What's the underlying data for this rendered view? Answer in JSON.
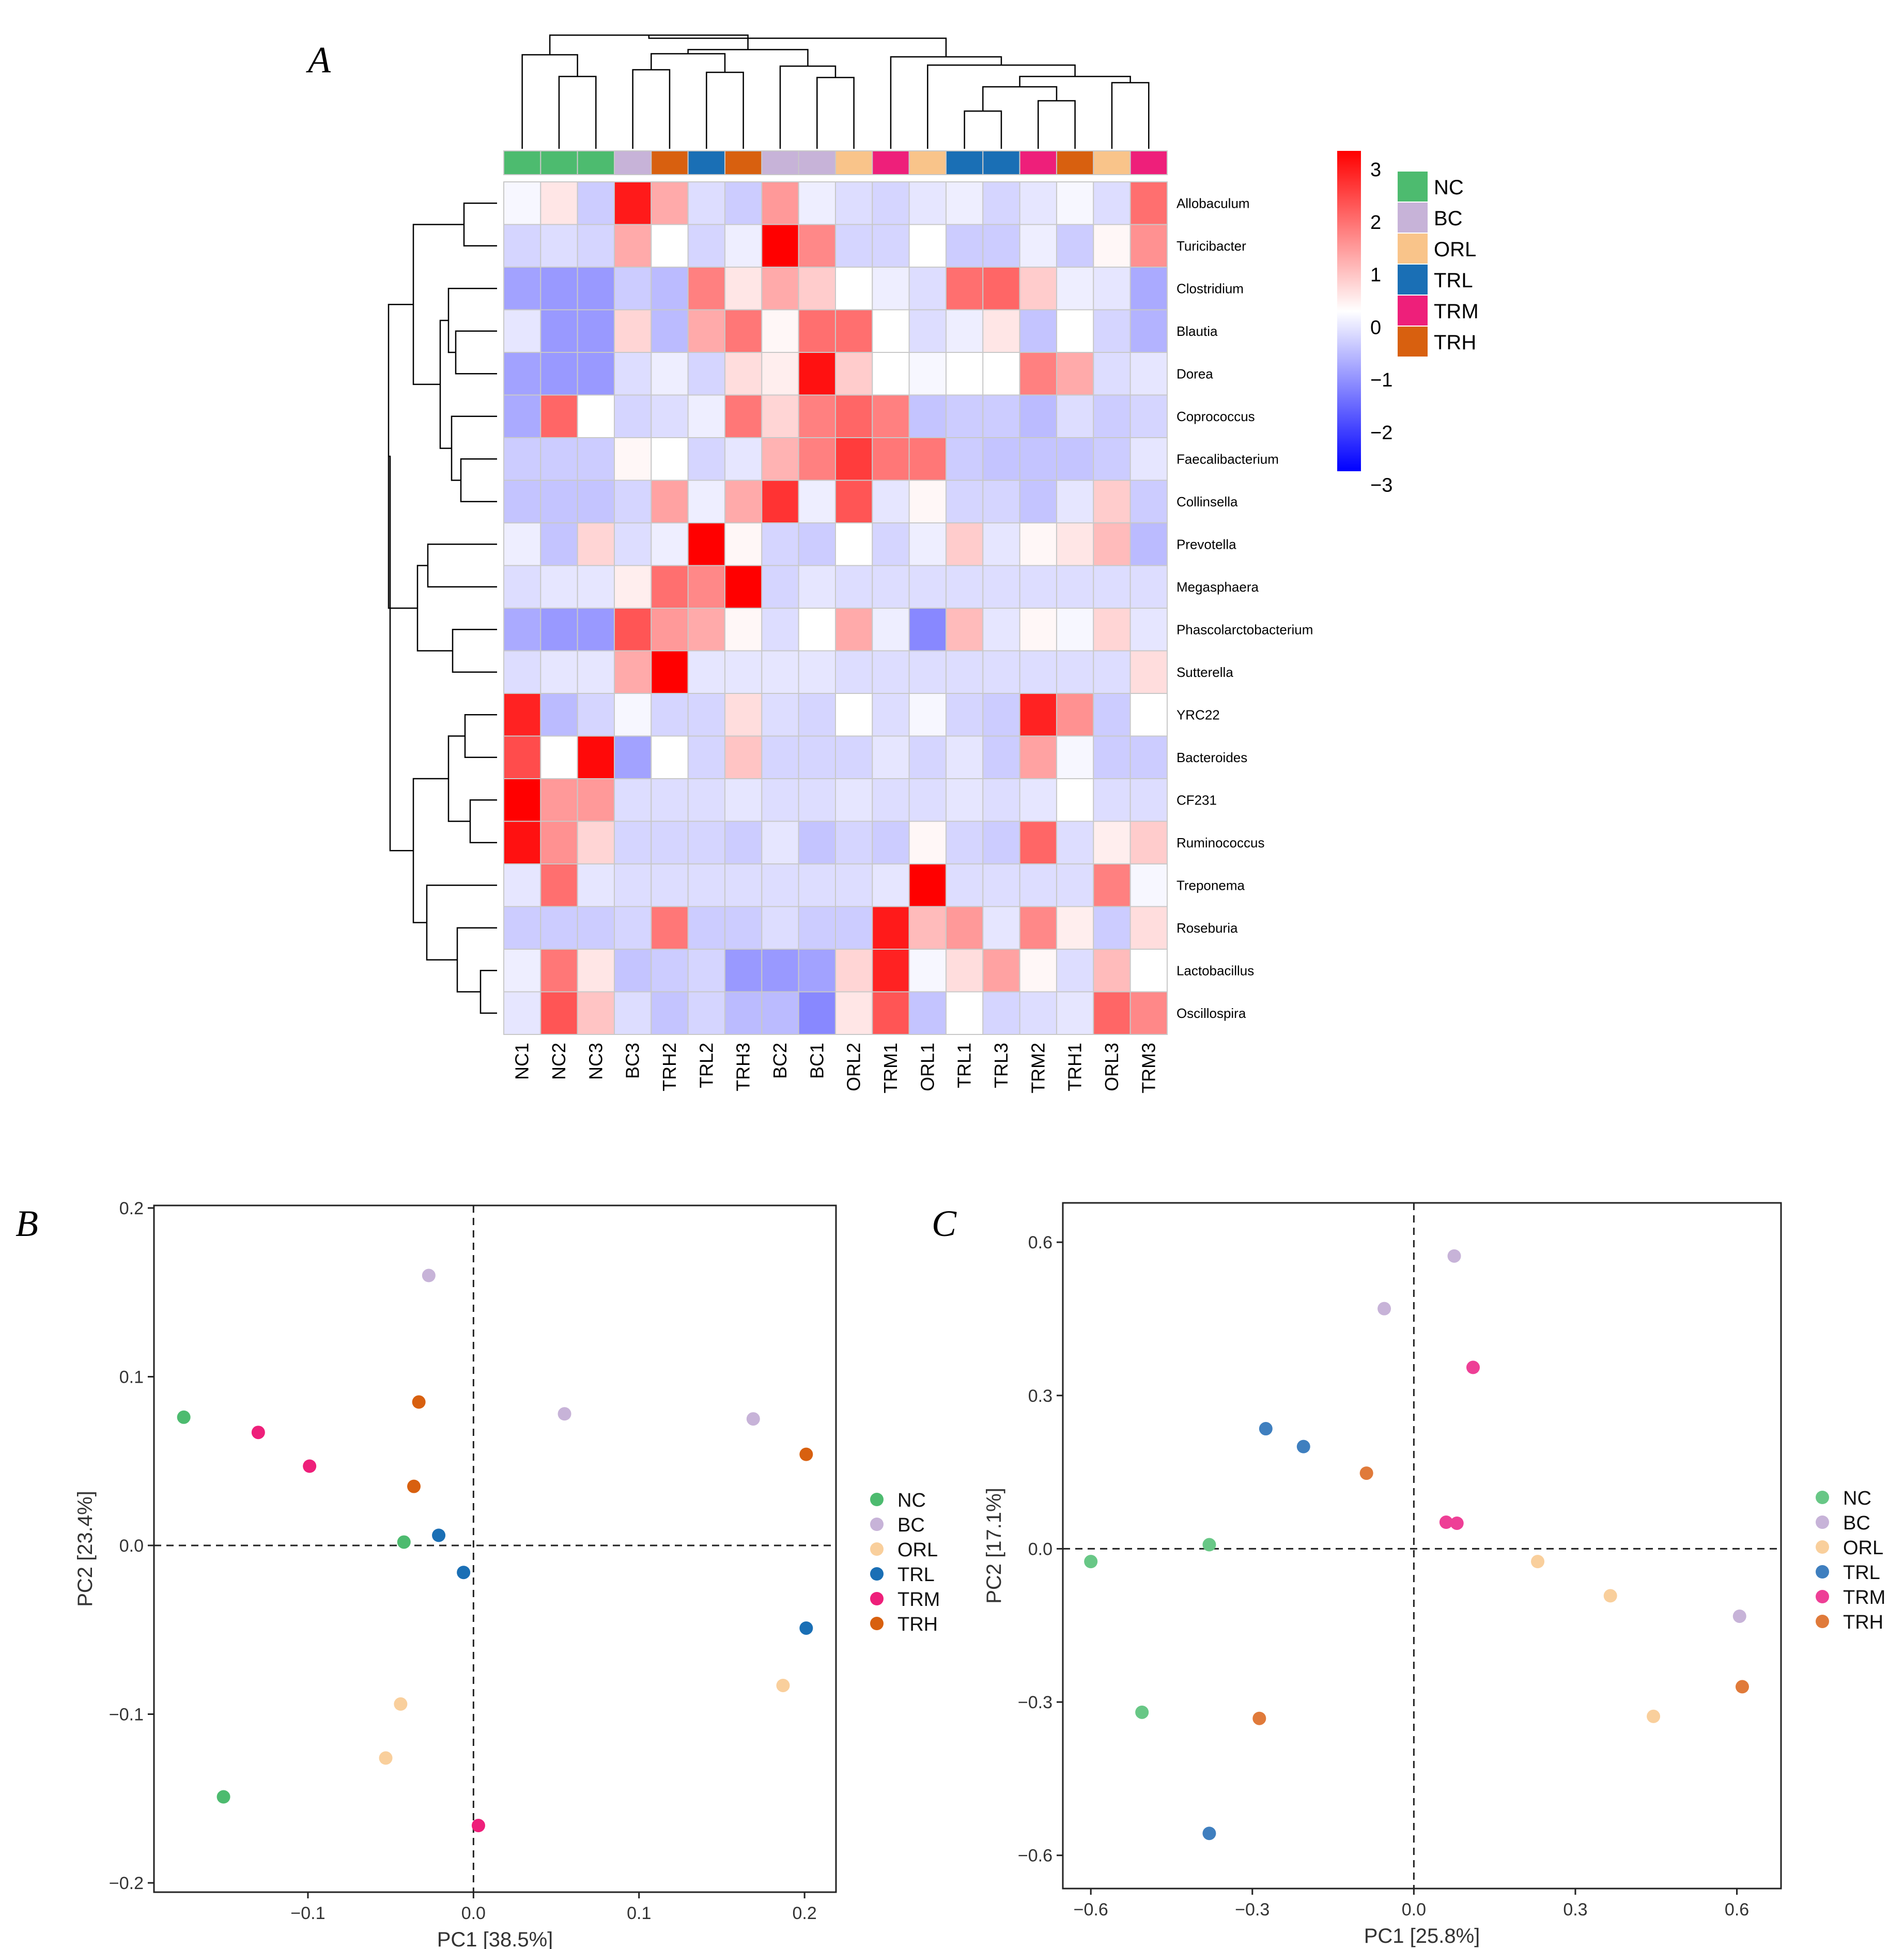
{
  "colors": {
    "NC": "#4dbb6f",
    "BC": "#c7b3d8",
    "ORL": "#f9c48a",
    "TRL": "#1a6fb5",
    "TRM": "#ee1f7a",
    "TRH": "#d8600f",
    "ORL_pca": "#f9cf9c",
    "NC_pcaC": "#68c786",
    "TRL_pcaC": "#3f7fbf",
    "TRH_pcaC": "#e07a3a",
    "TRM_pcaC": "#ee3f96"
  },
  "chart_data": [
    {
      "panel": "A",
      "type": "heatmap",
      "columns": [
        "NC1",
        "NC2",
        "NC3",
        "BC3",
        "TRH2",
        "TRL2",
        "TRH3",
        "BC2",
        "BC1",
        "ORL2",
        "TRM1",
        "ORL1",
        "TRL1",
        "TRL3",
        "TRM2",
        "TRH1",
        "ORL3",
        "TRM3"
      ],
      "column_groups": [
        "NC",
        "NC",
        "NC",
        "BC",
        "TRH",
        "TRL",
        "TRH",
        "BC",
        "BC",
        "ORL",
        "TRM",
        "ORL",
        "TRL",
        "TRL",
        "TRM",
        "TRH",
        "ORL",
        "TRM"
      ],
      "rows": [
        "Allobaculum",
        "Turicibacter",
        "Clostridium",
        "Blautia",
        "Dorea",
        "Coprococcus",
        "Faecalibacterium",
        "Collinsella",
        "Prevotella",
        "Megasphaera",
        "Phascolarctobacterium",
        "Sutterella",
        "YRC22",
        "Bacteroides",
        "CF231",
        "Ruminococcus",
        "Treponema",
        "Roseburia",
        "Lactobacillus",
        "Oscillospira"
      ],
      "values": [
        [
          -0.1,
          0.3,
          -0.6,
          2.7,
          1.0,
          -0.4,
          -0.6,
          1.2,
          -0.2,
          -0.4,
          -0.5,
          -0.3,
          -0.2,
          -0.5,
          -0.3,
          -0.1,
          -0.4,
          1.7
        ],
        [
          -0.5,
          -0.4,
          -0.5,
          1.0,
          0.0,
          -0.5,
          -0.2,
          3.0,
          1.4,
          -0.5,
          -0.5,
          0.0,
          -0.6,
          -0.6,
          -0.2,
          -0.6,
          0.1,
          1.3
        ],
        [
          -1.1,
          -1.2,
          -1.2,
          -0.6,
          -0.8,
          1.5,
          0.3,
          1.0,
          0.6,
          0.0,
          -0.2,
          -0.4,
          1.7,
          1.8,
          0.6,
          -0.2,
          -0.3,
          -1.0
        ],
        [
          -0.3,
          -1.2,
          -1.2,
          0.5,
          -0.8,
          1.0,
          1.6,
          0.1,
          1.7,
          1.7,
          0.0,
          -0.4,
          -0.2,
          0.3,
          -0.7,
          0.0,
          -0.5,
          -0.9
        ],
        [
          -1.1,
          -1.2,
          -1.2,
          -0.4,
          -0.2,
          -0.5,
          0.4,
          0.2,
          2.8,
          0.6,
          0.0,
          -0.1,
          0.0,
          0.0,
          1.5,
          1.0,
          -0.4,
          -0.3
        ],
        [
          -1.0,
          1.8,
          0.0,
          -0.5,
          -0.4,
          -0.2,
          1.6,
          0.5,
          1.5,
          1.8,
          1.5,
          -0.7,
          -0.6,
          -0.6,
          -0.8,
          -0.4,
          -0.6,
          -0.5
        ],
        [
          -0.6,
          -0.6,
          -0.6,
          0.1,
          0.0,
          -0.5,
          -0.3,
          0.9,
          1.5,
          2.3,
          1.6,
          1.6,
          -0.6,
          -0.7,
          -0.7,
          -0.7,
          -0.6,
          -0.3
        ],
        [
          -0.7,
          -0.7,
          -0.7,
          -0.5,
          1.1,
          -0.2,
          1.0,
          2.4,
          -0.2,
          2.0,
          -0.3,
          0.1,
          -0.5,
          -0.5,
          -0.7,
          -0.3,
          0.6,
          -0.6
        ],
        [
          -0.2,
          -0.7,
          0.5,
          -0.4,
          -0.2,
          3.7,
          0.1,
          -0.5,
          -0.6,
          0.0,
          -0.5,
          -0.2,
          0.6,
          -0.3,
          0.1,
          0.3,
          0.8,
          -0.8
        ],
        [
          -0.4,
          -0.3,
          -0.3,
          0.2,
          1.7,
          1.4,
          3.0,
          -0.5,
          -0.3,
          -0.4,
          -0.4,
          -0.4,
          -0.4,
          -0.4,
          -0.4,
          -0.4,
          -0.4,
          -0.4
        ],
        [
          -1.0,
          -1.2,
          -1.2,
          2.0,
          1.2,
          1.0,
          0.1,
          -0.4,
          0.0,
          1.0,
          -0.2,
          -1.4,
          0.8,
          -0.3,
          0.1,
          -0.1,
          0.5,
          -0.3
        ],
        [
          -0.4,
          -0.3,
          -0.3,
          1.0,
          3.8,
          -0.3,
          -0.3,
          -0.3,
          -0.3,
          -0.4,
          -0.4,
          -0.4,
          -0.4,
          -0.4,
          -0.4,
          -0.4,
          -0.4,
          0.4
        ],
        [
          2.6,
          -0.8,
          -0.5,
          -0.1,
          -0.5,
          -0.5,
          0.4,
          -0.4,
          -0.5,
          0.0,
          -0.4,
          -0.1,
          -0.5,
          -0.6,
          2.6,
          1.3,
          -0.6,
          0.0
        ],
        [
          2.1,
          0.0,
          2.9,
          -1.1,
          0.0,
          -0.5,
          0.7,
          -0.5,
          -0.5,
          -0.5,
          -0.3,
          -0.5,
          -0.3,
          -0.6,
          1.1,
          -0.1,
          -0.6,
          -0.6
        ],
        [
          3.5,
          1.2,
          1.2,
          -0.4,
          -0.4,
          -0.4,
          -0.3,
          -0.4,
          -0.4,
          -0.3,
          -0.4,
          -0.4,
          -0.3,
          -0.4,
          -0.3,
          0.0,
          -0.4,
          -0.4
        ],
        [
          2.8,
          1.3,
          0.5,
          -0.5,
          -0.5,
          -0.5,
          -0.6,
          -0.3,
          -0.7,
          -0.5,
          -0.6,
          0.1,
          -0.5,
          -0.6,
          1.8,
          -0.4,
          0.2,
          0.6
        ],
        [
          -0.3,
          1.7,
          -0.3,
          -0.4,
          -0.4,
          -0.4,
          -0.4,
          -0.4,
          -0.4,
          -0.4,
          -0.3,
          3.3,
          -0.4,
          -0.4,
          -0.4,
          -0.4,
          1.5,
          -0.1
        ],
        [
          -0.6,
          -0.6,
          -0.6,
          -0.5,
          1.6,
          -0.6,
          -0.6,
          -0.4,
          -0.6,
          -0.6,
          2.7,
          0.8,
          1.2,
          -0.3,
          1.4,
          0.2,
          -0.6,
          0.4
        ],
        [
          -0.2,
          1.6,
          0.3,
          -0.7,
          -0.6,
          -0.5,
          -1.2,
          -1.2,
          -1.1,
          0.5,
          2.6,
          -0.1,
          0.4,
          1.1,
          0.1,
          -0.4,
          0.8,
          0.0
        ],
        [
          -0.3,
          2.0,
          0.7,
          -0.4,
          -0.7,
          -0.5,
          -0.8,
          -0.8,
          -1.4,
          0.3,
          2.0,
          -0.7,
          0.0,
          -0.5,
          -0.4,
          -0.3,
          1.8,
          1.4
        ]
      ],
      "color_scale": {
        "min": -3,
        "max": 3,
        "low": "#0000ff",
        "mid": "#ffffff",
        "high": "#ff0000"
      },
      "colorbar_ticks": [
        "3",
        "2",
        "1",
        "0",
        "−1",
        "−2",
        "−3"
      ],
      "legend": [
        "NC",
        "BC",
        "ORL",
        "TRL",
        "TRM",
        "TRH"
      ],
      "clustering": "rows and columns (dendrograms)"
    },
    {
      "panel": "B",
      "type": "scatter",
      "xlabel": "PC1 [38.5%]",
      "ylabel": "PC2 [23.4%]",
      "xlim": [
        -0.193,
        0.219
      ],
      "ylim": [
        -0.2055,
        0.2015
      ],
      "xticks": [
        -0.1,
        0.0,
        0.1,
        0.2
      ],
      "yticks": [
        -0.2,
        -0.1,
        0.0,
        0.1,
        0.2
      ],
      "xtick_labels": [
        "−0.1",
        "0.0",
        "0.1",
        "0.2"
      ],
      "ytick_labels": [
        "−0.2",
        "−0.1",
        "0.0",
        "0.1",
        "0.2"
      ],
      "reference_lines": {
        "x": 0,
        "y": 0,
        "style": "dashed"
      },
      "legend": [
        "NC",
        "BC",
        "ORL",
        "TRL",
        "TRM",
        "TRH"
      ],
      "legend_position": "right",
      "series": [
        {
          "name": "NC",
          "points": [
            [
              -0.175,
              0.076
            ],
            [
              -0.151,
              -0.149
            ],
            [
              -0.042,
              0.002
            ]
          ]
        },
        {
          "name": "BC",
          "points": [
            [
              -0.027,
              0.16
            ],
            [
              0.055,
              0.078
            ],
            [
              0.169,
              0.075
            ]
          ]
        },
        {
          "name": "ORL",
          "points": [
            [
              -0.044,
              -0.094
            ],
            [
              -0.053,
              -0.126
            ],
            [
              0.187,
              -0.083
            ]
          ]
        },
        {
          "name": "TRL",
          "points": [
            [
              -0.021,
              0.006
            ],
            [
              -0.006,
              -0.016
            ],
            [
              0.201,
              -0.049
            ]
          ]
        },
        {
          "name": "TRM",
          "points": [
            [
              -0.13,
              0.067
            ],
            [
              -0.099,
              0.047
            ],
            [
              0.003,
              -0.166
            ]
          ]
        },
        {
          "name": "TRH",
          "points": [
            [
              -0.033,
              0.085
            ],
            [
              -0.036,
              0.035
            ],
            [
              0.201,
              0.054
            ]
          ]
        }
      ]
    },
    {
      "panel": "C",
      "type": "scatter",
      "xlabel": "PC1 [25.8%]",
      "ylabel": "PC2 [17.1%]",
      "xlim": [
        -0.652,
        0.682
      ],
      "ylim": [
        -0.665,
        0.677
      ],
      "xticks": [
        -0.6,
        -0.3,
        0.0,
        0.3,
        0.6
      ],
      "yticks": [
        -0.6,
        -0.3,
        0.0,
        0.3,
        0.6
      ],
      "xtick_labels": [
        "−0.6",
        "−0.3",
        "0.0",
        "0.3",
        "0.6"
      ],
      "ytick_labels": [
        "−0.6",
        "−0.3",
        "0.0",
        "0.3",
        "0.6"
      ],
      "reference_lines": {
        "x": 0,
        "y": 0,
        "style": "dashed"
      },
      "legend": [
        "NC",
        "BC",
        "ORL",
        "TRL",
        "TRM",
        "TRH"
      ],
      "legend_position": "right",
      "series": [
        {
          "name": "NC",
          "points": [
            [
              -0.6,
              -0.025
            ],
            [
              -0.38,
              0.008
            ],
            [
              -0.505,
              -0.32
            ]
          ]
        },
        {
          "name": "BC",
          "points": [
            [
              -0.055,
              0.47
            ],
            [
              0.075,
              0.573
            ],
            [
              0.605,
              -0.132
            ]
          ]
        },
        {
          "name": "ORL",
          "points": [
            [
              0.23,
              -0.025
            ],
            [
              0.365,
              -0.092
            ],
            [
              0.445,
              -0.328
            ]
          ]
        },
        {
          "name": "TRL",
          "points": [
            [
              -0.275,
              0.235
            ],
            [
              -0.205,
              0.2
            ],
            [
              -0.38,
              -0.557
            ]
          ]
        },
        {
          "name": "TRM",
          "points": [
            [
              0.11,
              0.355
            ],
            [
              0.06,
              0.052
            ],
            [
              0.08,
              0.05
            ]
          ]
        },
        {
          "name": "TRH",
          "points": [
            [
              -0.088,
              0.148
            ],
            [
              -0.287,
              -0.332
            ],
            [
              0.61,
              -0.27
            ]
          ]
        }
      ]
    }
  ],
  "panel_labels": [
    "A",
    "B",
    "C"
  ]
}
